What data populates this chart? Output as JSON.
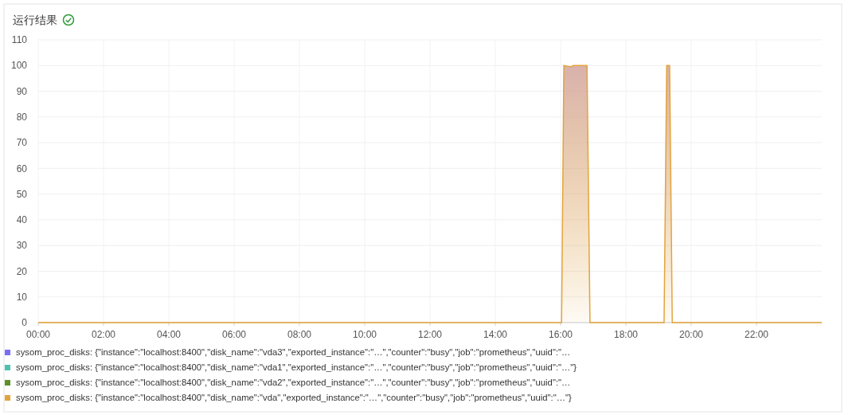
{
  "chart_data": {
    "type": "line",
    "title": "运行结果",
    "xlim": [
      0,
      24
    ],
    "xticks": [
      {
        "value": 0,
        "label": "00:00"
      },
      {
        "value": 2,
        "label": "02:00"
      },
      {
        "value": 4,
        "label": "04:00"
      },
      {
        "value": 6,
        "label": "06:00"
      },
      {
        "value": 8,
        "label": "08:00"
      },
      {
        "value": 10,
        "label": "10:00"
      },
      {
        "value": 12,
        "label": "12:00"
      },
      {
        "value": 14,
        "label": "14:00"
      },
      {
        "value": 16,
        "label": "16:00"
      },
      {
        "value": 18,
        "label": "18:00"
      },
      {
        "value": 20,
        "label": "20:00"
      },
      {
        "value": 22,
        "label": "22:00"
      }
    ],
    "ylim": [
      0,
      110
    ],
    "yticks": [
      0,
      10,
      20,
      30,
      40,
      50,
      60,
      70,
      80,
      90,
      100,
      110
    ],
    "grid": true,
    "legend": "bottom",
    "marker": "none",
    "line_style": "solid",
    "series": [
      {
        "name": "sysom_proc_disks: {\"instance\":\"localhost:8400\",\"disk_name\":\"vda3\",\"exported_instance\":\"…\",\"counter\":\"busy\",\"job\":\"prometheus\",\"uuid\":\"…",
        "color": "#7b6cf6"
      },
      {
        "name": "sysom_proc_disks: {\"instance\":\"localhost:8400\",\"disk_name\":\"vda1\",\"exported_instance\":\"…\",\"counter\":\"busy\",\"job\":\"prometheus\",\"uuid\":\"…\"}",
        "color": "#4cc3b0"
      },
      {
        "name": "sysom_proc_disks: {\"instance\":\"localhost:8400\",\"disk_name\":\"vda2\",\"exported_instance\":\"…\",\"counter\":\"busy\",\"job\":\"prometheus\",\"uuid\":\"…",
        "color": "#5e8f2a"
      },
      {
        "name": "sysom_proc_disks: {\"instance\":\"localhost:8400\",\"disk_name\":\"vda\",\"exported_instance\":\"…\",\"counter\":\"busy\",\"job\":\"prometheus\",\"uuid\":\"…\"}",
        "color": "#e3a43a",
        "type": "area",
        "x": [
          0,
          16.03,
          16.1,
          16.3,
          16.4,
          16.81,
          16.9,
          19.17,
          19.25,
          19.34,
          19.42,
          24
        ],
        "values": [
          0,
          0,
          100,
          99.5,
          100,
          100,
          0,
          0,
          100,
          100,
          0,
          0
        ]
      }
    ]
  }
}
